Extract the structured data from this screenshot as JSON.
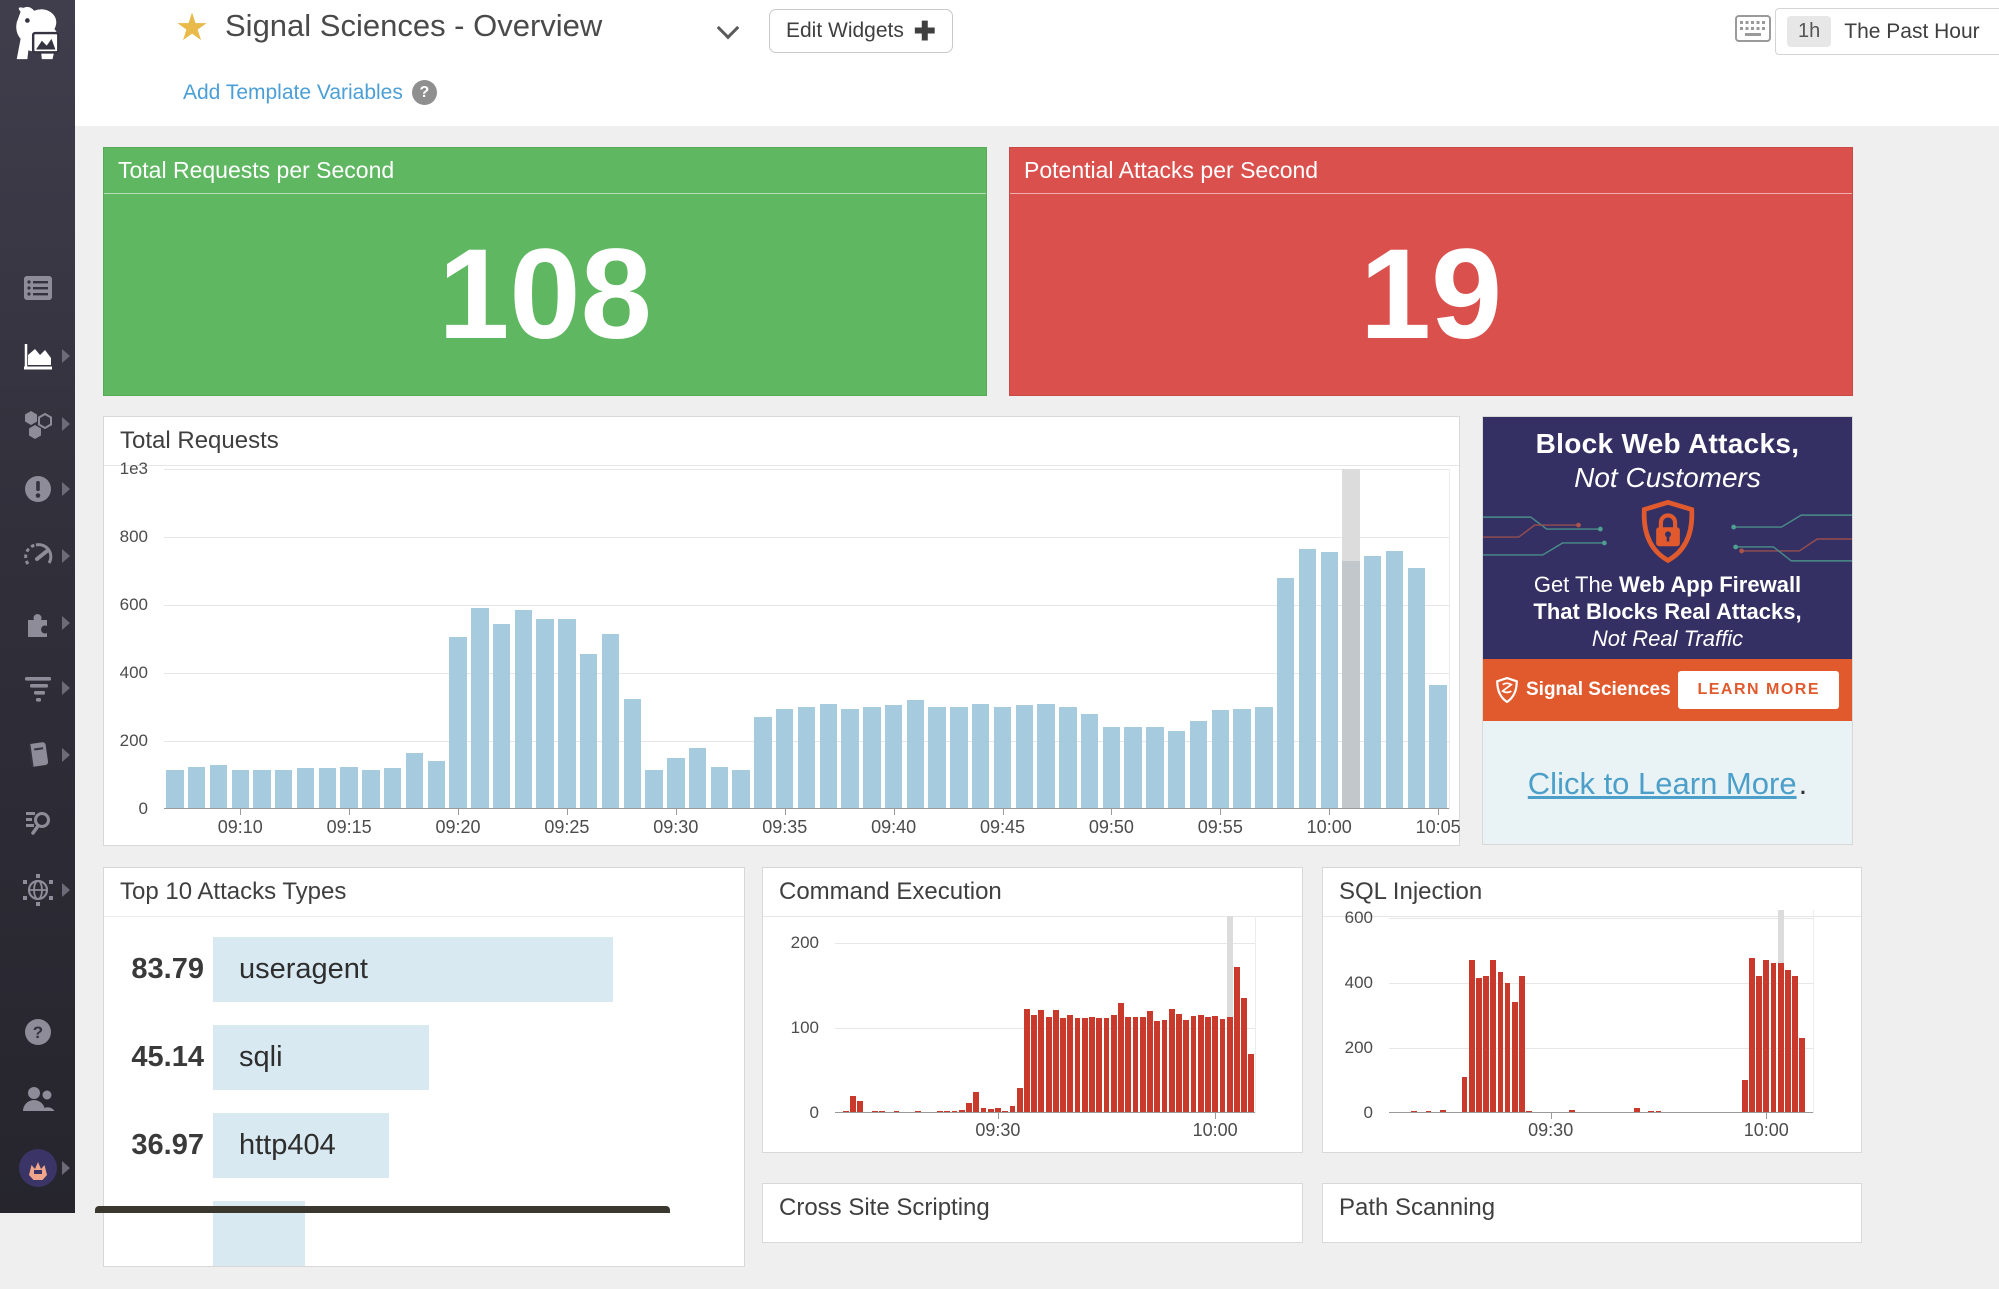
{
  "header": {
    "title": "Signal Sciences - Overview",
    "edit_widgets_label": "Edit Widgets",
    "time_badge": "1h",
    "time_label": "The Past Hour",
    "add_template_variables": "Add Template Variables"
  },
  "colors": {
    "green_widget": "#60b761",
    "red_widget": "#d9504d",
    "blue_bar": "#a6cbdf",
    "red_bar": "#c9392c",
    "hover_column": "#dcdcdc",
    "hover_bar": "#c2c7cb",
    "link_blue": "#4b9fd6",
    "ad_navy": "#343064",
    "ad_orange": "#e05a2d"
  },
  "widgets": {
    "total_requests_per_second": {
      "title": "Total Requests per Second",
      "value": "108"
    },
    "potential_attacks_per_second": {
      "title": "Potential Attacks per Second",
      "value": "19"
    },
    "cross_site_scripting": {
      "title": "Cross Site Scripting"
    },
    "path_scanning": {
      "title": "Path Scanning"
    }
  },
  "ad": {
    "heading1": "Block Web Attacks,",
    "heading2": "Not Customers",
    "line1_prefix": "Get The ",
    "line1_bold": "Web App Firewall",
    "line2": "That Blocks Real Attacks,",
    "line3": "Not Real Traffic",
    "brand": "Signal Sciences",
    "cta": "LEARN MORE",
    "link": "Click to Learn More",
    "link_suffix": "."
  },
  "sidebar": {
    "items": [
      {
        "id": "datadog-logo"
      },
      {
        "id": "events"
      },
      {
        "id": "metrics",
        "active": true
      },
      {
        "id": "infrastructure"
      },
      {
        "id": "monitors"
      },
      {
        "id": "metrics-explorer"
      },
      {
        "id": "integrations"
      },
      {
        "id": "apm-traces"
      },
      {
        "id": "notebooks"
      },
      {
        "id": "log-explorer"
      },
      {
        "id": "network"
      },
      {
        "id": "help"
      },
      {
        "id": "team"
      },
      {
        "id": "user-avatar"
      }
    ]
  },
  "chart_data": [
    {
      "id": "total-requests",
      "type": "bar",
      "title": "Total Requests",
      "bar_color": "#a6cbdf",
      "hover_color": "#dcdcdc",
      "hover_bar_color": "#c2c7cb",
      "hover_index": 54,
      "y_max": 1000,
      "y_ticks": [
        {
          "label": "1e3",
          "value": 1000
        },
        {
          "label": "800",
          "value": 800
        },
        {
          "label": "600",
          "value": 600
        },
        {
          "label": "400",
          "value": 400
        },
        {
          "label": "200",
          "value": 200
        },
        {
          "label": "0",
          "value": 0
        }
      ],
      "x_tick_labels": [
        "09:10",
        "09:15",
        "09:20",
        "09:25",
        "09:30",
        "09:35",
        "09:40",
        "09:45",
        "09:50",
        "09:55",
        "10:00",
        "10:05"
      ],
      "x_tick_indexes": [
        3,
        8,
        13,
        18,
        23,
        28,
        33,
        38,
        43,
        48,
        53,
        58
      ],
      "values": [
        115,
        125,
        130,
        115,
        115,
        115,
        120,
        120,
        125,
        115,
        120,
        165,
        140,
        505,
        590,
        545,
        585,
        560,
        560,
        455,
        515,
        325,
        115,
        150,
        180,
        125,
        115,
        270,
        295,
        300,
        310,
        295,
        300,
        305,
        320,
        300,
        300,
        310,
        300,
        305,
        310,
        300,
        280,
        240,
        240,
        240,
        230,
        260,
        290,
        295,
        300,
        680,
        765,
        755,
        730,
        745,
        760,
        710,
        365
      ]
    },
    {
      "id": "top-attacks",
      "type": "bar-horizontal",
      "title": "Top 10 Attacks Types",
      "bar_color": "#d9e9f2",
      "rows": [
        {
          "value": "83.79",
          "label": "useragent",
          "pct": 100
        },
        {
          "value": "45.14",
          "label": "sqli",
          "pct": 53.9
        },
        {
          "value": "36.97",
          "label": "http404",
          "pct": 44.1
        },
        {
          "value": "",
          "label": "",
          "pct": 23
        }
      ]
    },
    {
      "id": "command-execution",
      "type": "bar",
      "title": "Command Execution",
      "bar_color": "#c9392c",
      "hover_color": "#dcdcdc",
      "hover_index": 54,
      "y_max": 232,
      "y_ticks": [
        {
          "label": "200",
          "value": 200
        },
        {
          "label": "100",
          "value": 100
        },
        {
          "label": "0",
          "value": 0
        }
      ],
      "x_tick_labels": [
        "09:30",
        "10:00"
      ],
      "x_tick_indexes": [
        22,
        52
      ],
      "values": [
        0,
        2,
        20,
        14,
        0,
        2,
        2,
        0,
        2,
        0,
        0,
        2,
        0,
        0,
        2,
        2,
        2,
        4,
        12,
        25,
        6,
        5,
        6,
        2,
        8,
        30,
        122,
        115,
        121,
        113,
        121,
        112,
        115,
        112,
        112,
        113,
        112,
        112,
        115,
        130,
        113,
        113,
        113,
        120,
        108,
        110,
        122,
        117,
        110,
        114,
        116,
        113,
        114,
        111,
        113,
        172,
        135,
        70
      ]
    },
    {
      "id": "sql-injection",
      "type": "bar",
      "title": "SQL Injection",
      "bar_color": "#c9392c",
      "hover_color": "#dcdcdc",
      "hover_index": 54,
      "y_max": 624,
      "y_ticks": [
        {
          "label": "600",
          "value": 600
        },
        {
          "label": "400",
          "value": 400
        },
        {
          "label": "200",
          "value": 200
        },
        {
          "label": "0",
          "value": 0
        }
      ],
      "x_tick_labels": [
        "09:30",
        "10:00"
      ],
      "x_tick_indexes": [
        22,
        52
      ],
      "values": [
        0,
        0,
        0,
        2,
        0,
        5,
        0,
        10,
        0,
        0,
        110,
        470,
        415,
        420,
        470,
        435,
        400,
        340,
        420,
        5,
        0,
        0,
        0,
        0,
        0,
        10,
        0,
        0,
        0,
        0,
        0,
        0,
        0,
        0,
        15,
        0,
        5,
        5,
        0,
        0,
        0,
        0,
        0,
        0,
        0,
        0,
        0,
        0,
        0,
        100,
        475,
        420,
        470,
        460,
        460,
        440,
        420,
        230,
        0
      ]
    }
  ]
}
